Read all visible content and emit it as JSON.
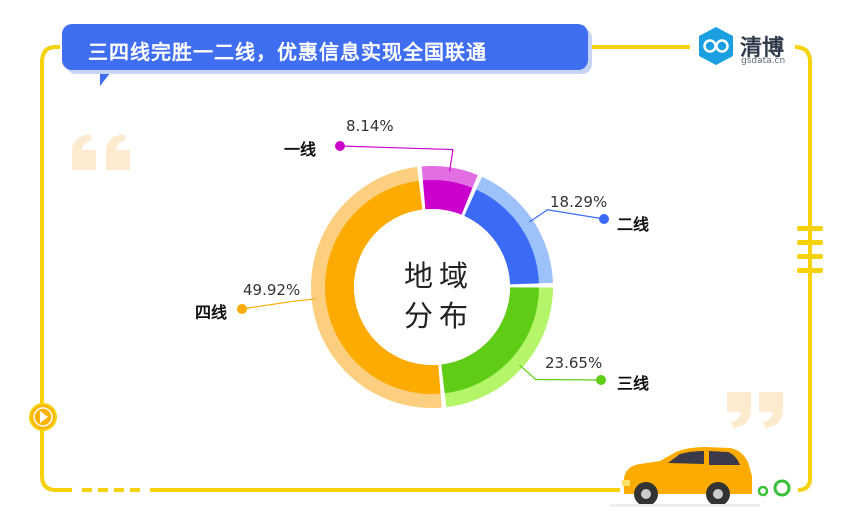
{
  "header": {
    "title": "三四线完胜一二线，优惠信息实现全国联通",
    "logo_name": "清博",
    "logo_domain": "gsdata.cn"
  },
  "colors": {
    "banner": "#3f6ef0",
    "frame": "#f5d20b",
    "tier1": "#cc00cc",
    "tier2": "#3b6af5",
    "tier3": "#5fcc16",
    "tier4": "#fdab00"
  },
  "chart_data": {
    "type": "pie",
    "subtype": "donut",
    "center_label_line1": "地域",
    "center_label_line2": "分布",
    "categories": [
      "一线",
      "二线",
      "三线",
      "四线"
    ],
    "values": [
      8.14,
      18.29,
      23.65,
      49.92
    ],
    "value_labels": [
      "8.14%",
      "18.29%",
      "23.65%",
      "49.92%"
    ],
    "unit": "%",
    "colors": [
      "#cc00cc",
      "#3b6af5",
      "#5fcc16",
      "#fdab00"
    ],
    "outer_colors": [
      "#e36ee3",
      "#9dc1fb",
      "#b4f56a",
      "#fccf80"
    ]
  }
}
